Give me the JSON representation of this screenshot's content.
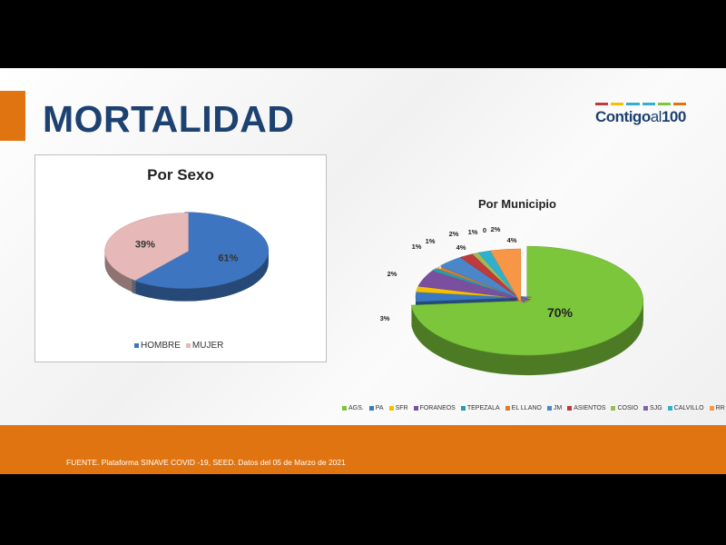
{
  "slide": {
    "title": "MORTALIDAD",
    "logo": {
      "text_main": "Contigo",
      "text_al": "al",
      "text_num": "100",
      "bar_colors": [
        "#c0393b",
        "#f6c000",
        "#2fb0cf",
        "#2fb0cf",
        "#7cc63b",
        "#e07411"
      ]
    },
    "footer": "FUENTE. Plataforma SINAVE COVID -19, SEED. Datos del 05 de Marzo de 2021",
    "accent_color": "#e07411",
    "title_color": "#1d4170"
  },
  "chart_data": [
    {
      "type": "pie",
      "title": "Por Sexo",
      "categories": [
        "HOMBRE",
        "MUJER"
      ],
      "values": [
        61,
        39
      ],
      "labels": [
        "61%",
        "39%"
      ],
      "colors": [
        "#3e75c0",
        "#e6b9b8"
      ],
      "legend": "bottom",
      "style": "3d-exploded"
    },
    {
      "type": "pie",
      "title": "Por Municipio",
      "categories": [
        "AGS.",
        "PA",
        "SFR",
        "FORANEOS",
        "TEPEZALA",
        "EL LLANO",
        "JM",
        "ASIENTOS",
        "COSIO",
        "SJG",
        "CALVILLO",
        "RR"
      ],
      "values": [
        70,
        3,
        2,
        5,
        1,
        1,
        4,
        2,
        1,
        0,
        2,
        4
      ],
      "labels": [
        "70%",
        "3%",
        "2%",
        "5%",
        "1%",
        "1%",
        "4%",
        "2%",
        "1%",
        "0",
        "2%",
        "4%"
      ],
      "colors": [
        "#7cc63b",
        "#3a78c0",
        "#f6c000",
        "#7a4fa0",
        "#2e9aa8",
        "#e07b2a",
        "#4a86c8",
        "#c0393b",
        "#9bbb59",
        "#8064a2",
        "#2fb0cf",
        "#f79646"
      ],
      "legend": "bottom",
      "style": "3d-exploded"
    }
  ]
}
